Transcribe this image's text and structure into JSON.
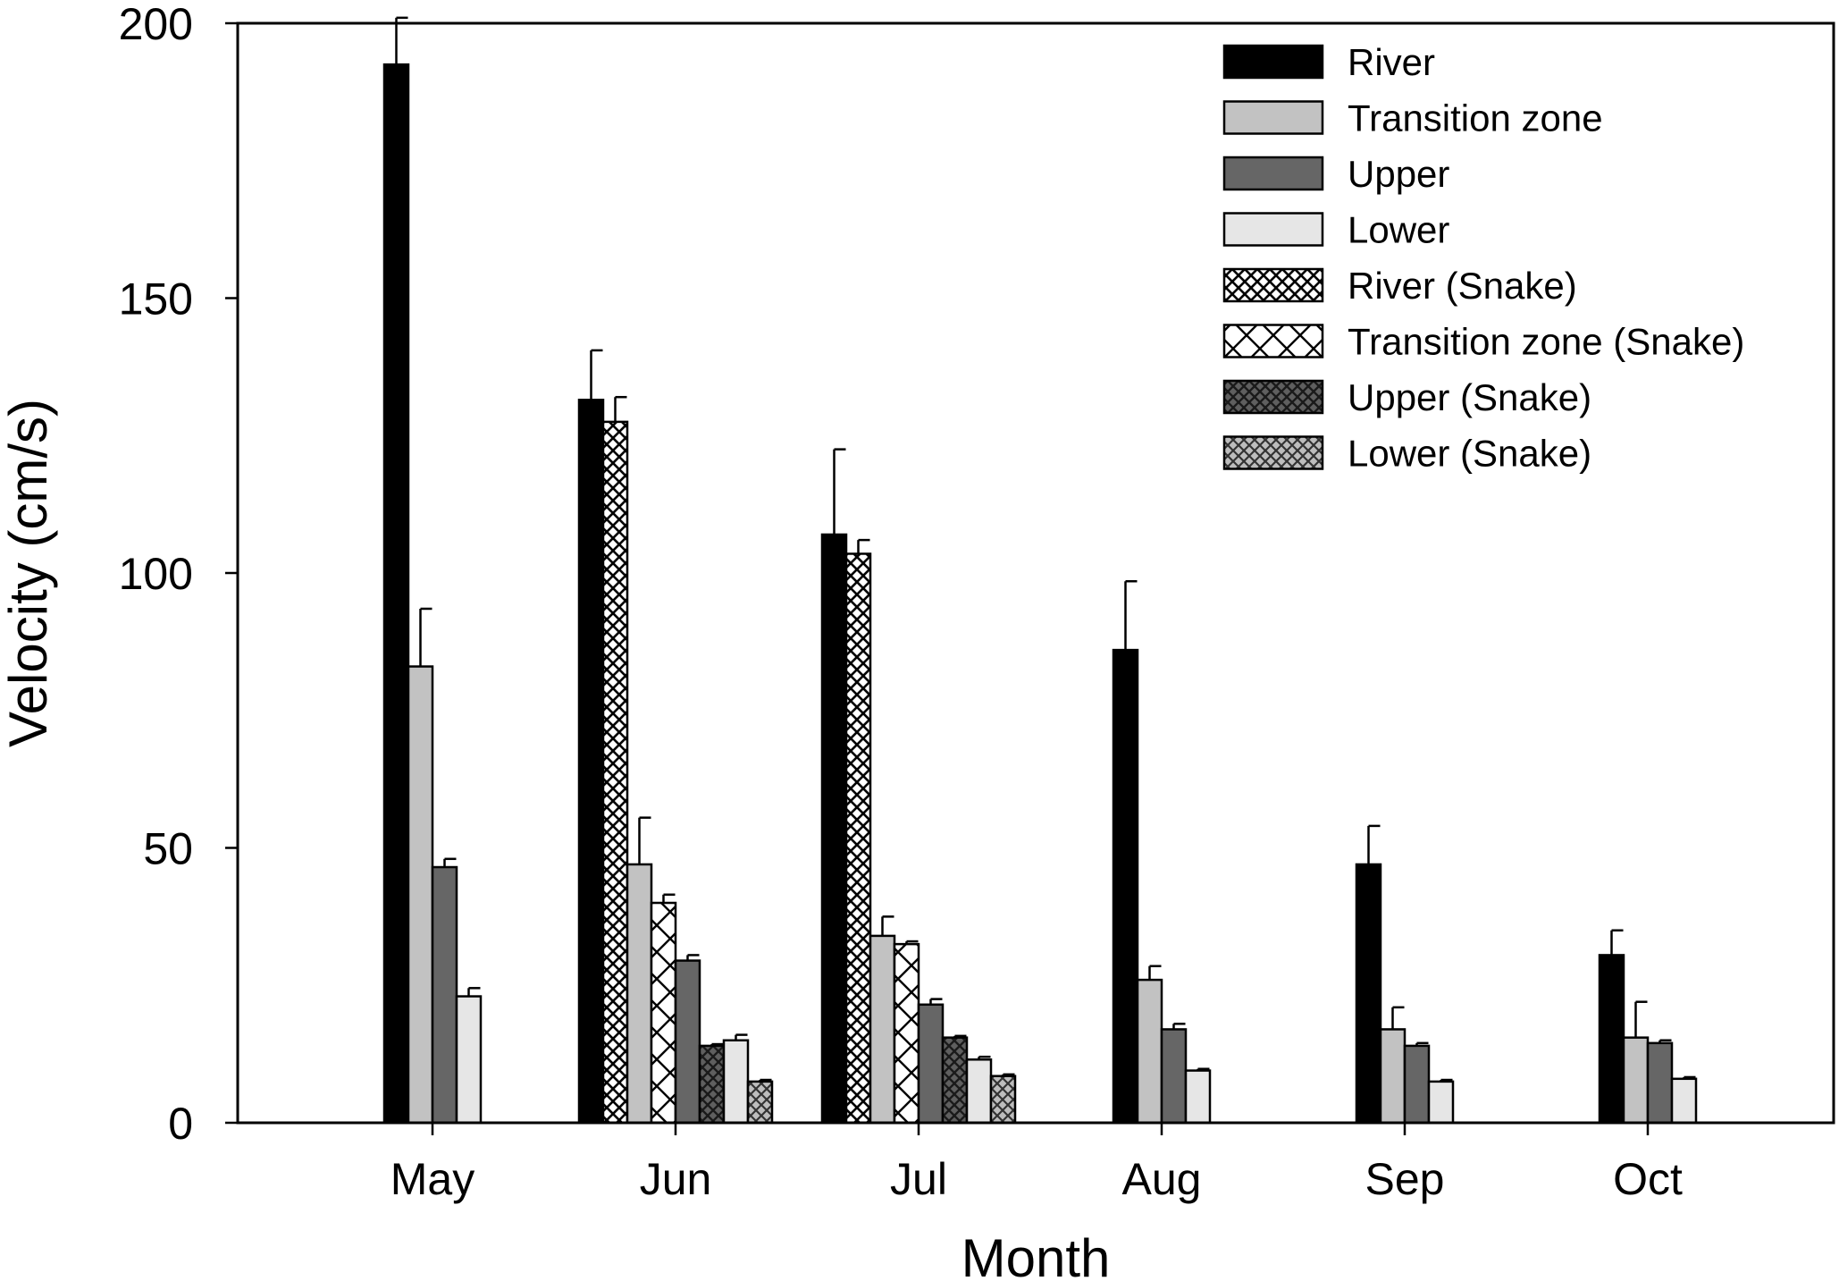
{
  "chart_data": {
    "type": "bar",
    "title": "",
    "xlabel": "Month",
    "ylabel": "Velocity (cm/s)",
    "ylim": [
      0,
      200
    ],
    "yticks": [
      0,
      50,
      100,
      150,
      200
    ],
    "grid": false,
    "legend_position": "top-right",
    "categories": [
      "May",
      "Jun",
      "Jul",
      "Aug",
      "Sep",
      "Oct"
    ],
    "series": [
      {
        "name": "River",
        "pattern": "solid-black",
        "values": [
          192.5,
          131.5,
          107,
          86,
          47,
          30.5
        ],
        "errors": [
          8.5,
          9,
          15.5,
          12.5,
          7,
          4.5
        ]
      },
      {
        "name": "Transition zone",
        "pattern": "solid-light-gray",
        "values": [
          83,
          47,
          34,
          26,
          17,
          15.5
        ],
        "errors": [
          10.5,
          8.5,
          3.5,
          2.5,
          4,
          6.5
        ]
      },
      {
        "name": "Upper",
        "pattern": "solid-dark-gray",
        "values": [
          46.5,
          29.5,
          21.5,
          17,
          14,
          14.5
        ],
        "errors": [
          1.5,
          1,
          1,
          1,
          0.5,
          0.5
        ]
      },
      {
        "name": "Lower",
        "pattern": "solid-pale-gray",
        "values": [
          23,
          15,
          11.5,
          9.5,
          7.5,
          8
        ],
        "errors": [
          1.5,
          1,
          0.5,
          0.3,
          0.3,
          0.3
        ]
      },
      {
        "name": "River (Snake)",
        "pattern": "fine-crosshatch",
        "values": [
          null,
          127.5,
          103.5,
          null,
          null,
          null
        ],
        "errors": [
          null,
          4.5,
          2.5,
          null,
          null,
          null
        ]
      },
      {
        "name": "Transition zone (Snake)",
        "pattern": "wide-crosshatch",
        "values": [
          null,
          40,
          32.5,
          null,
          null,
          null
        ],
        "errors": [
          null,
          1.5,
          0.5,
          null,
          null,
          null
        ]
      },
      {
        "name": "Upper (Snake)",
        "pattern": "dark-crosshatch",
        "values": [
          null,
          14,
          15.5,
          null,
          null,
          null
        ],
        "errors": [
          null,
          0.3,
          0.3,
          null,
          null,
          null
        ]
      },
      {
        "name": "Lower (Snake)",
        "pattern": "gray-crosshatch",
        "values": [
          null,
          7.5,
          8.5,
          null,
          null,
          null
        ],
        "errors": [
          null,
          0.3,
          0.3,
          null,
          null,
          null
        ]
      }
    ],
    "bar_order": {
      "May": [
        "River",
        "Transition zone",
        "Upper",
        "Lower"
      ],
      "Jun": [
        "River",
        "River (Snake)",
        "Transition zone",
        "Transition zone (Snake)",
        "Upper",
        "Upper (Snake)",
        "Lower",
        "Lower (Snake)"
      ],
      "Jul": [
        "River",
        "River (Snake)",
        "Transition zone",
        "Transition zone (Snake)",
        "Upper",
        "Upper (Snake)",
        "Lower",
        "Lower (Snake)"
      ],
      "Aug": [
        "River",
        "Transition zone",
        "Upper",
        "Lower"
      ],
      "Sep": [
        "River",
        "Transition zone",
        "Upper",
        "Lower"
      ],
      "Oct": [
        "River",
        "Transition zone",
        "Upper",
        "Lower"
      ]
    }
  }
}
